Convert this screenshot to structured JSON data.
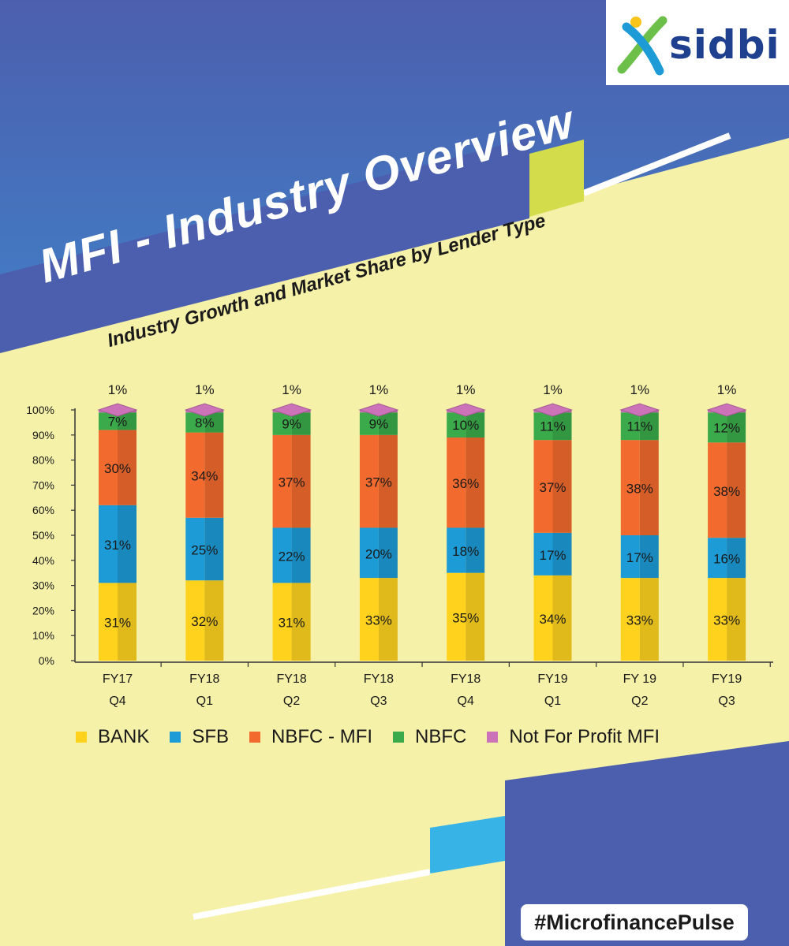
{
  "header": {
    "title": "MFI - Industry Overview",
    "subtitle": "Industry Growth and Market Share by Lender Type",
    "logo_text": "sidbi",
    "hashtag": "#MicrofinancePulse"
  },
  "colors": {
    "bank": "#ffd21e",
    "sfb": "#1c9bd6",
    "nbfc_mfi": "#f26a2e",
    "nbfc": "#3aaa4a",
    "not_for_profit": "#cc72b8",
    "background": "#f6f1a8",
    "banner": "#4c5fae",
    "sky": "#3b9ad6"
  },
  "chart_data": {
    "type": "bar",
    "stacked": true,
    "categories": [
      [
        "FY17",
        "Q4"
      ],
      [
        "FY18",
        "Q1"
      ],
      [
        "FY18",
        "Q2"
      ],
      [
        "FY18",
        "Q3"
      ],
      [
        "FY18",
        "Q4"
      ],
      [
        "FY19",
        "Q1"
      ],
      [
        "FY 19",
        "Q2"
      ],
      [
        "FY19",
        "Q3"
      ]
    ],
    "series": [
      {
        "name": "BANK",
        "values": [
          31,
          32,
          31,
          33,
          35,
          34,
          33,
          33
        ],
        "color_key": "bank"
      },
      {
        "name": "SFB",
        "values": [
          31,
          25,
          22,
          20,
          18,
          17,
          17,
          16
        ],
        "color_key": "sfb"
      },
      {
        "name": "NBFC - MFI",
        "values": [
          30,
          34,
          37,
          37,
          36,
          37,
          38,
          38
        ],
        "color_key": "nbfc_mfi"
      },
      {
        "name": "NBFC",
        "values": [
          7,
          8,
          9,
          9,
          10,
          11,
          11,
          12
        ],
        "color_key": "nbfc"
      },
      {
        "name": "Not For Profit MFI",
        "values": [
          1,
          1,
          1,
          1,
          1,
          1,
          1,
          1
        ],
        "color_key": "not_for_profit"
      }
    ],
    "value_suffix": "%",
    "y_ticks": [
      "0%",
      "10%",
      "20%",
      "30%",
      "40%",
      "50%",
      "60%",
      "70%",
      "80%",
      "90%",
      "100%"
    ],
    "ylim": [
      0,
      100
    ],
    "legend_position": "bottom",
    "grid": false
  }
}
